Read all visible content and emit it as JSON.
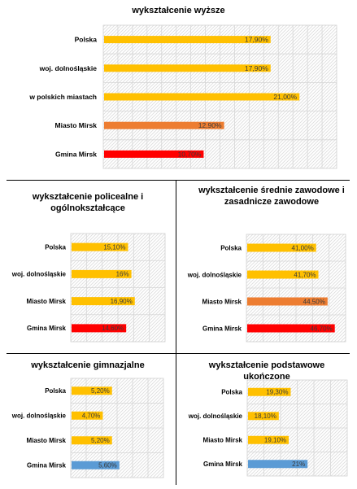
{
  "chart_data": [
    {
      "type": "bar",
      "orientation": "horizontal",
      "title": "wykształcenie wyższe",
      "categories": [
        "Polska",
        "woj. dolnośląskie",
        "w polskich miastach",
        "Miasto Mirsk",
        "Gmina Mirsk"
      ],
      "values": [
        17.9,
        17.9,
        21.0,
        12.9,
        10.7
      ],
      "data_labels": [
        "17,90%",
        "17,90%",
        "21,00%",
        "12,90%",
        "10,70%"
      ],
      "colors": [
        "#FFC000",
        "#FFC000",
        "#FFC000",
        "#ED7D31",
        "#FF0000"
      ],
      "xlim": [
        0,
        25
      ],
      "grid": true
    },
    {
      "type": "bar",
      "orientation": "horizontal",
      "title": "wykształcenie policealne i ogólnokształcące",
      "categories": [
        "Polska",
        "woj. dolnośląskie",
        "Miasto Mirsk",
        "Gmina Mirsk"
      ],
      "values": [
        15.1,
        16.0,
        16.9,
        14.6
      ],
      "data_labels": [
        "15,10%",
        "16%",
        "16,90%",
        "14,60%"
      ],
      "colors": [
        "#FFC000",
        "#FFC000",
        "#FFC000",
        "#FF0000"
      ],
      "xlim": [
        0,
        25
      ],
      "grid": true
    },
    {
      "type": "bar",
      "orientation": "horizontal",
      "title": "wykształcenie średnie zawodowe i zasadnicze zawodowe",
      "categories": [
        "Polska",
        "woj. dolnośląskie",
        "Miasto Mirsk",
        "Gmina Mirsk"
      ],
      "values": [
        41.0,
        41.7,
        44.5,
        46.7
      ],
      "data_labels": [
        "41,00%",
        "41,70%",
        "44,50%",
        "46,70%"
      ],
      "colors": [
        "#FFC000",
        "#FFC000",
        "#ED7D31",
        "#FF0000"
      ],
      "xlim": [
        20,
        50
      ],
      "grid": true
    },
    {
      "type": "bar",
      "orientation": "horizontal",
      "title": "wykształcenie gimnazjalne",
      "categories": [
        "Polska",
        "woj. dolnośląskie",
        "Miasto Mirsk",
        "Gmina Mirsk"
      ],
      "values": [
        5.2,
        4.7,
        5.2,
        5.6
      ],
      "data_labels": [
        "5,20%",
        "4,70%",
        "5,20%",
        "5,60%"
      ],
      "colors": [
        "#FFC000",
        "#FFC000",
        "#FFC000",
        "#5B9BD5"
      ],
      "xlim": [
        3,
        8
      ],
      "grid": true
    },
    {
      "type": "bar",
      "orientation": "horizontal",
      "title": "wykształcenie podstawowe ukończone",
      "categories": [
        "Polska",
        "woj. dolnośląskie",
        "Miasto Mirsk",
        "Gmina Mirsk"
      ],
      "values": [
        19.3,
        18.1,
        19.1,
        21.0
      ],
      "data_labels": [
        "19,30%",
        "18,10%",
        "19,10%",
        "21%"
      ],
      "colors": [
        "#FFC000",
        "#FFC000",
        "#FFC000",
        "#5B9BD5"
      ],
      "xlim": [
        15,
        25
      ],
      "grid": true
    }
  ]
}
